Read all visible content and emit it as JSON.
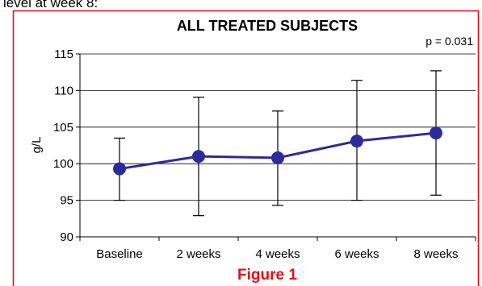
{
  "page": {
    "top_text": "level at week 8:",
    "caption": "Figure 1"
  },
  "colors": {
    "frame_border": "#e3101a",
    "caption": "#e3101a",
    "series": "#2b2b9c",
    "axis": "#000000",
    "grid": "#000000"
  },
  "chart_data": {
    "type": "line",
    "title": "ALL TREATED SUBJECTS",
    "annotation": "p = 0.031",
    "ylabel": "g/L",
    "xlabel": "",
    "categories": [
      "Baseline",
      "2 weeks",
      "4 weeks",
      "6 weeks",
      "8 weeks"
    ],
    "series": [
      {
        "values": [
          99.3,
          101.0,
          100.8,
          103.1,
          104.2
        ],
        "err_low": [
          95.0,
          92.9,
          94.3,
          95.0,
          95.7
        ],
        "err_high": [
          103.5,
          109.1,
          107.2,
          111.4,
          112.7
        ]
      }
    ],
    "ylim": [
      90,
      115
    ],
    "yticks": [
      90,
      95,
      100,
      105,
      110,
      115
    ],
    "grid": true,
    "legend": "none"
  }
}
